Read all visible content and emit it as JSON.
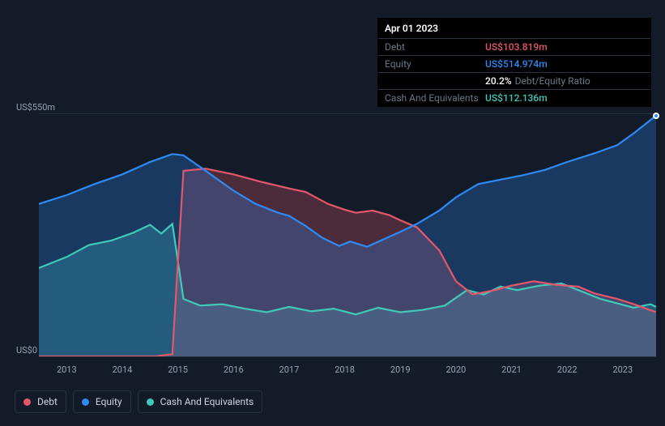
{
  "colors": {
    "background": "#131b28",
    "grid": "#2a3340",
    "axis_text": "#97a3b5",
    "debt": "#e4576a",
    "equity": "#2f8af5",
    "cash": "#40c9b8",
    "tooltip_bg": "#000000",
    "tooltip_label": "#6b7785",
    "tooltip_text": "#ffffff"
  },
  "chart": {
    "type": "area",
    "x_years": [
      2013,
      2014,
      2015,
      2016,
      2017,
      2018,
      2019,
      2020,
      2021,
      2022,
      2023
    ],
    "x_domain": [
      2012.5,
      2023.6
    ],
    "y_domain": [
      0,
      550
    ],
    "y_ticks": [
      {
        "value": 0,
        "label": "US$0"
      },
      {
        "value": 550,
        "label": "US$550m"
      }
    ],
    "line_width": 2.2,
    "fill_opacity": 0.28,
    "label_fontsize": 11
  },
  "series": {
    "debt": {
      "label": "Debt",
      "color": "#e4576a",
      "points": [
        [
          2012.5,
          0
        ],
        [
          2013.2,
          0
        ],
        [
          2014.0,
          0
        ],
        [
          2014.6,
          0
        ],
        [
          2014.9,
          5
        ],
        [
          2015.1,
          420
        ],
        [
          2015.5,
          425
        ],
        [
          2016.0,
          412
        ],
        [
          2016.5,
          395
        ],
        [
          2017.0,
          380
        ],
        [
          2017.3,
          372
        ],
        [
          2017.7,
          345
        ],
        [
          2018.0,
          332
        ],
        [
          2018.2,
          325
        ],
        [
          2018.5,
          330
        ],
        [
          2018.8,
          320
        ],
        [
          2019.0,
          308
        ],
        [
          2019.3,
          292
        ],
        [
          2019.7,
          240
        ],
        [
          2020.0,
          170
        ],
        [
          2020.3,
          140
        ],
        [
          2020.7,
          150
        ],
        [
          2021.0,
          160
        ],
        [
          2021.4,
          170
        ],
        [
          2021.8,
          162
        ],
        [
          2022.2,
          158
        ],
        [
          2022.5,
          142
        ],
        [
          2022.9,
          130
        ],
        [
          2023.2,
          118
        ],
        [
          2023.6,
          100
        ]
      ]
    },
    "equity": {
      "label": "Equity",
      "color": "#2f8af5",
      "points": [
        [
          2012.5,
          345
        ],
        [
          2013.0,
          365
        ],
        [
          2013.5,
          390
        ],
        [
          2014.0,
          412
        ],
        [
          2014.5,
          440
        ],
        [
          2014.9,
          458
        ],
        [
          2015.1,
          455
        ],
        [
          2015.5,
          420
        ],
        [
          2016.0,
          375
        ],
        [
          2016.4,
          345
        ],
        [
          2016.8,
          325
        ],
        [
          2017.0,
          318
        ],
        [
          2017.3,
          295
        ],
        [
          2017.6,
          268
        ],
        [
          2017.9,
          250
        ],
        [
          2018.1,
          260
        ],
        [
          2018.4,
          248
        ],
        [
          2018.7,
          265
        ],
        [
          2019.0,
          282
        ],
        [
          2019.3,
          300
        ],
        [
          2019.7,
          330
        ],
        [
          2020.0,
          360
        ],
        [
          2020.4,
          390
        ],
        [
          2020.8,
          400
        ],
        [
          2021.2,
          410
        ],
        [
          2021.6,
          422
        ],
        [
          2022.0,
          440
        ],
        [
          2022.5,
          460
        ],
        [
          2022.9,
          478
        ],
        [
          2023.2,
          505
        ],
        [
          2023.6,
          545
        ]
      ]
    },
    "cash": {
      "label": "Cash And Equivalents",
      "color": "#40c9b8",
      "points": [
        [
          2012.5,
          200
        ],
        [
          2013.0,
          225
        ],
        [
          2013.4,
          252
        ],
        [
          2013.8,
          262
        ],
        [
          2014.2,
          280
        ],
        [
          2014.5,
          298
        ],
        [
          2014.7,
          278
        ],
        [
          2014.9,
          300
        ],
        [
          2015.1,
          130
        ],
        [
          2015.4,
          115
        ],
        [
          2015.8,
          118
        ],
        [
          2016.2,
          108
        ],
        [
          2016.6,
          100
        ],
        [
          2017.0,
          112
        ],
        [
          2017.4,
          102
        ],
        [
          2017.8,
          108
        ],
        [
          2018.2,
          95
        ],
        [
          2018.6,
          110
        ],
        [
          2019.0,
          100
        ],
        [
          2019.4,
          105
        ],
        [
          2019.8,
          115
        ],
        [
          2020.2,
          150
        ],
        [
          2020.5,
          140
        ],
        [
          2020.8,
          158
        ],
        [
          2021.1,
          150
        ],
        [
          2021.5,
          160
        ],
        [
          2021.9,
          165
        ],
        [
          2022.3,
          145
        ],
        [
          2022.6,
          130
        ],
        [
          2022.9,
          120
        ],
        [
          2023.2,
          110
        ],
        [
          2023.5,
          118
        ],
        [
          2023.6,
          112
        ]
      ]
    }
  },
  "tooltip": {
    "date": "Apr 01 2023",
    "rows": {
      "debt": {
        "label": "Debt",
        "value": "US$103.819m",
        "color": "#e4576a"
      },
      "equity": {
        "label": "Equity",
        "value": "US$514.974m",
        "color": "#2f8af5"
      },
      "ratio": {
        "label": "",
        "value": "20.2%",
        "suffix": "Debt/Equity Ratio"
      },
      "cash": {
        "label": "Cash And Equivalents",
        "value": "US$112.136m",
        "color": "#40c9b8"
      }
    }
  },
  "legend": {
    "debt": "Debt",
    "equity": "Equity",
    "cash": "Cash And Equivalents"
  },
  "hover_marker": {
    "x_year": 2023.6,
    "y_value": 545,
    "color": "#2f8af5"
  }
}
